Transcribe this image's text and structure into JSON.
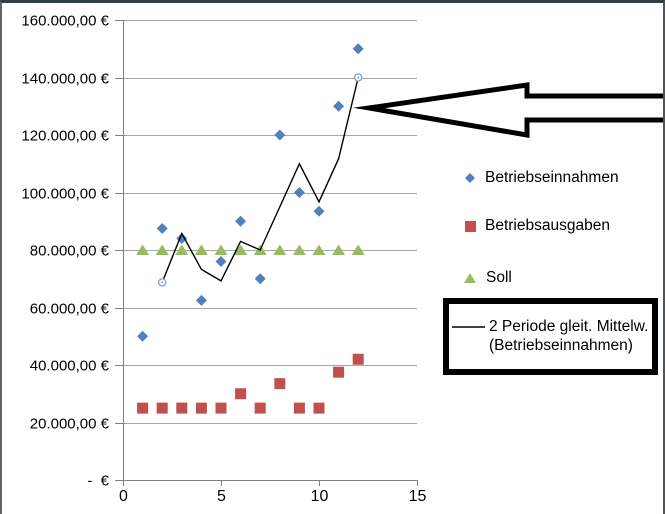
{
  "window": {
    "background": "#ffffff",
    "border_top_color": "#313d40",
    "border_side_color": "#5f6567"
  },
  "chart_data": {
    "type": "scatter",
    "title": "",
    "xlim": [
      0,
      15
    ],
    "ylim": [
      0,
      160000
    ],
    "x_ticks": [
      0,
      5,
      10,
      15
    ],
    "x_tick_labels": [
      "0",
      "5",
      "10",
      "15"
    ],
    "y_tick_step": 20000,
    "y_tick_labels": [
      "-  €",
      "20.000,00 €",
      "40.000,00 €",
      "60.000,00 €",
      "80.000,00 €",
      "100.000,00 €",
      "120.000,00 €",
      "140.000,00 €",
      "160.000,00 €"
    ],
    "grid": true,
    "gridline_color": "#a6a6a6",
    "axis_color": "#808080",
    "legend_position": "right",
    "x": [
      1,
      2,
      3,
      4,
      5,
      6,
      7,
      8,
      9,
      10,
      11,
      12
    ],
    "series": [
      {
        "name": "Betriebseinnahmen",
        "marker": "diamond",
        "color": "#4f81bd",
        "values": [
          50000,
          87500,
          84000,
          62500,
          76000,
          90000,
          70000,
          120000,
          100000,
          93500,
          130000,
          150000
        ]
      },
      {
        "name": "Betriebsausgaben",
        "marker": "square",
        "color": "#c0504d",
        "values": [
          25000,
          25000,
          25000,
          25000,
          25000,
          30000,
          25000,
          33500,
          25000,
          25000,
          37500,
          42000
        ]
      },
      {
        "name": "Soll",
        "marker": "triangle",
        "color": "#9bbb59",
        "values": [
          80000,
          80000,
          80000,
          80000,
          80000,
          80000,
          80000,
          80000,
          80000,
          80000,
          80000,
          80000
        ]
      },
      {
        "name": "2 Periode gleit. Mittelw. (Betriebseinnahmen)",
        "type": "line",
        "color": "#000000",
        "endpoint_handle_color": "#7ba0cd",
        "x": [
          2,
          3,
          4,
          5,
          6,
          7,
          8,
          9,
          10,
          11,
          12
        ],
        "values": [
          68750,
          85750,
          73250,
          69250,
          83000,
          80000,
          95000,
          110000,
          96750,
          111750,
          140000
        ]
      }
    ]
  },
  "legend": {
    "items": [
      {
        "label": "Betriebseinnahmen",
        "marker": "diamond",
        "color": "#4f81bd"
      },
      {
        "label": "Betriebsausgaben",
        "marker": "square",
        "color": "#c0504d"
      },
      {
        "label": "Soll",
        "marker": "triangle",
        "color": "#9bbb59"
      },
      {
        "label_line1": "2 Periode gleit. Mittelw.",
        "label_line2": "(Betriebseinnahmen)",
        "marker": "line",
        "color": "#000000"
      }
    ]
  },
  "annotations": {
    "arrow": {
      "shape": "block-arrow-left",
      "fill": "#ffffff",
      "stroke": "#000000"
    },
    "highlight_box": {
      "shape": "rectangle",
      "stroke": "#000000"
    }
  }
}
